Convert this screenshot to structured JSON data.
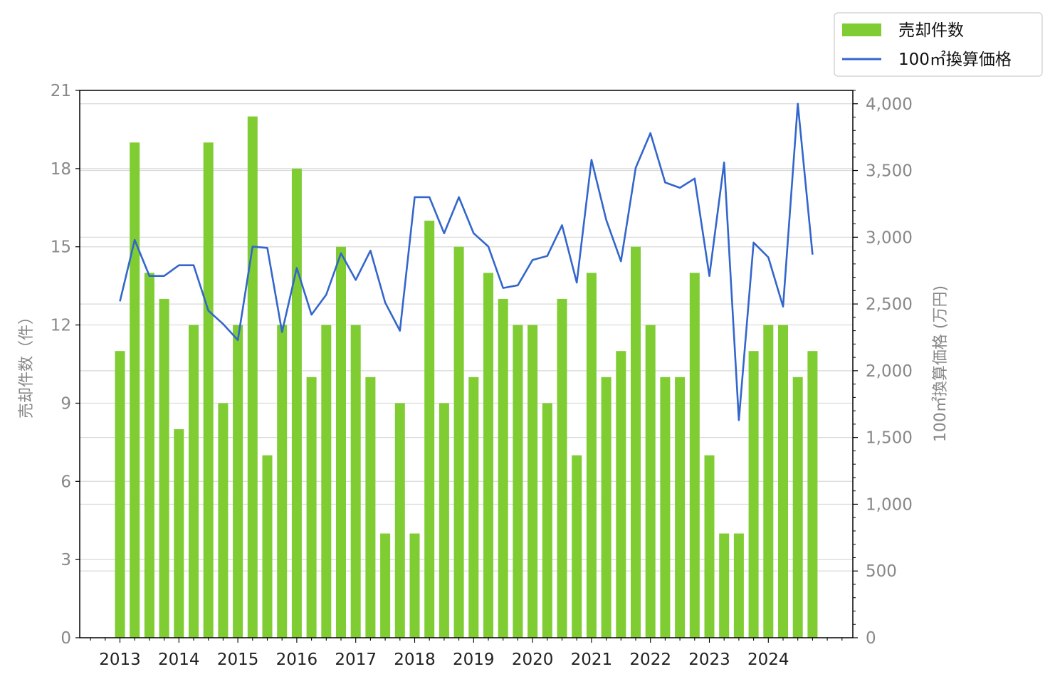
{
  "chart_data": {
    "type": "bar",
    "x": [
      "2013-01",
      "2013-04",
      "2013-07",
      "2013-10",
      "2014-01",
      "2014-04",
      "2014-07",
      "2014-10",
      "2015-01",
      "2015-04",
      "2015-07",
      "2015-10",
      "2016-01",
      "2016-04",
      "2016-07",
      "2016-10",
      "2017-01",
      "2017-04",
      "2017-07",
      "2017-10",
      "2018-01",
      "2018-04",
      "2018-07",
      "2018-10",
      "2019-01",
      "2019-04",
      "2019-07",
      "2019-10",
      "2020-01",
      "2020-04",
      "2020-07",
      "2020-10",
      "2021-01",
      "2021-04",
      "2021-07",
      "2021-10",
      "2022-01",
      "2022-04",
      "2022-07",
      "2022-10",
      "2023-01",
      "2023-04",
      "2023-07",
      "2023-10",
      "2024-01",
      "2024-04",
      "2024-07",
      "2024-10"
    ],
    "x_tick_labels": [
      "2013",
      "2014",
      "2015",
      "2016",
      "2017",
      "2018",
      "2019",
      "2020",
      "2021",
      "2022",
      "2023",
      "2024"
    ],
    "series": [
      {
        "name": "売却件数",
        "type": "bar",
        "axis": "left",
        "color": "#7fcc33",
        "values": [
          11,
          19,
          14,
          13,
          8,
          12,
          19,
          9,
          12,
          20,
          7,
          12,
          18,
          10,
          12,
          15,
          12,
          10,
          4,
          9,
          4,
          16,
          9,
          15,
          10,
          14,
          13,
          12,
          12,
          9,
          13,
          7,
          14,
          10,
          11,
          15,
          12,
          10,
          10,
          14,
          7,
          4,
          4,
          11,
          12,
          12,
          10,
          11
        ]
      },
      {
        "name": "100㎡換算価格",
        "type": "line",
        "axis": "right",
        "color": "#3366cc",
        "values": [
          2520,
          2980,
          2710,
          2710,
          2790,
          2790,
          2450,
          2350,
          2230,
          2930,
          2920,
          2290,
          2770,
          2420,
          2570,
          2880,
          2680,
          2900,
          2510,
          2300,
          3300,
          3300,
          3030,
          3300,
          3030,
          2930,
          2620,
          2640,
          2830,
          2860,
          3090,
          2660,
          3580,
          3130,
          2820,
          3520,
          3780,
          3410,
          3370,
          3440,
          2710,
          3560,
          1630,
          2960,
          2850,
          2480,
          4000,
          2870
        ]
      }
    ],
    "y_left": {
      "label": "売却件数（件）",
      "ylim": [
        0,
        21
      ],
      "ticks": [
        "0",
        "3",
        "6",
        "9",
        "12",
        "15",
        "18",
        "21"
      ]
    },
    "y_right": {
      "label": "100㎡換算価格 (万円)",
      "ylim": [
        0,
        4100
      ],
      "ticks": [
        "0",
        "500",
        "1,000",
        "1,500",
        "2,000",
        "2,500",
        "3,000",
        "3,500",
        "4,000"
      ]
    },
    "grid": true,
    "legend_position": "top-right, above plot"
  }
}
